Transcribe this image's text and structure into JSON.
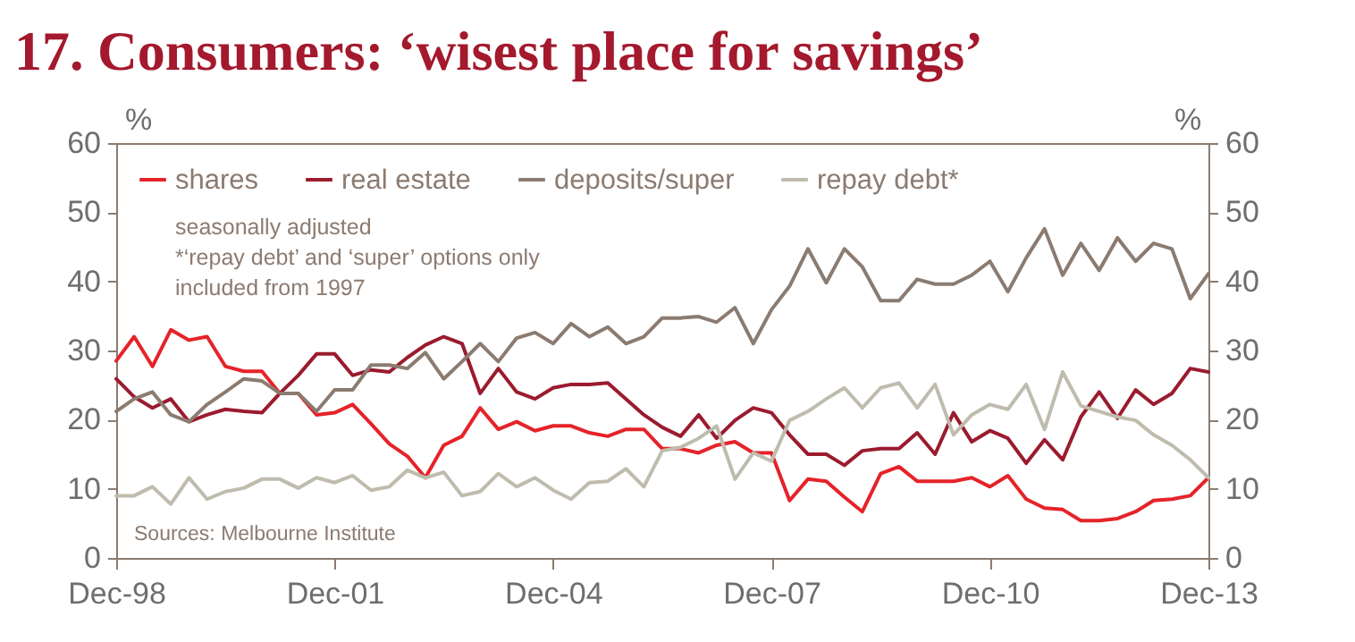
{
  "chart_data": {
    "type": "line",
    "title": "17. Consumers: ‘wisest place for savings’",
    "ylabel": "%",
    "y2label": "%",
    "x": [
      "1998-12",
      "1999-03",
      "1999-06",
      "1999-09",
      "1999-12",
      "2000-03",
      "2000-06",
      "2000-09",
      "2000-12",
      "2001-03",
      "2001-06",
      "2001-09",
      "2001-12",
      "2002-03",
      "2002-06",
      "2002-09",
      "2002-12",
      "2003-03",
      "2003-06",
      "2003-09",
      "2003-12",
      "2004-03",
      "2004-06",
      "2004-09",
      "2004-12",
      "2005-03",
      "2005-06",
      "2005-09",
      "2005-12",
      "2006-03",
      "2006-06",
      "2006-09",
      "2006-12",
      "2007-03",
      "2007-06",
      "2007-09",
      "2007-12",
      "2008-03",
      "2008-06",
      "2008-09",
      "2008-12",
      "2009-03",
      "2009-06",
      "2009-09",
      "2009-12",
      "2010-03",
      "2010-06",
      "2010-09",
      "2010-12",
      "2011-03",
      "2011-06",
      "2011-09",
      "2011-12",
      "2012-03",
      "2012-06",
      "2012-09",
      "2012-12",
      "2013-03",
      "2013-06",
      "2013-09",
      "2013-12"
    ],
    "series": [
      {
        "name": "shares",
        "color": "#e52329",
        "values": [
          28.5,
          32,
          27.7,
          33,
          31.5,
          32,
          27.7,
          27,
          27,
          23.8,
          23.8,
          20.7,
          21,
          22.2,
          19.4,
          16.5,
          14.7,
          11.6,
          16.3,
          17.6,
          21.7,
          18.6,
          19.7,
          18.4,
          19.1,
          19.1,
          18.1,
          17.6,
          18.6,
          18.6,
          15.8,
          15.8,
          15.2,
          16.3,
          16.8,
          15.2,
          15.2,
          8.3,
          11.4,
          11.1,
          8.8,
          6.7,
          12.2,
          13.2,
          11.1,
          11.1,
          11.1,
          11.6,
          10.3,
          11.9,
          8.5,
          7.2,
          7,
          5.4,
          5.4,
          5.7,
          6.7,
          8.3,
          8.5,
          9,
          11.6
        ]
      },
      {
        "name": "real estate",
        "color": "#9b1b2e",
        "values": [
          25.9,
          23.3,
          21.7,
          23,
          19.7,
          20.7,
          21.5,
          21.2,
          21,
          23.8,
          26.4,
          29.5,
          29.5,
          26.4,
          27.2,
          26.9,
          29,
          30.8,
          32,
          31,
          23.8,
          27.4,
          24,
          23,
          24.6,
          25.1,
          25.1,
          25.3,
          23,
          20.7,
          18.9,
          17.6,
          20.7,
          17.3,
          19.9,
          21.7,
          21,
          17.8,
          15,
          15,
          13.4,
          15.5,
          15.8,
          15.8,
          18.1,
          15,
          21,
          16.8,
          18.4,
          17.3,
          13.7,
          17.1,
          14.2,
          20.4,
          24,
          20.2,
          24.3,
          22.2,
          23.8,
          27.4,
          26.9
        ]
      },
      {
        "name": "deposits/super",
        "color": "#8b7b70",
        "values": [
          21.2,
          23,
          24,
          20.7,
          19.7,
          22.2,
          24,
          25.9,
          25.6,
          23.8,
          23.8,
          21.2,
          24.3,
          24.3,
          27.9,
          27.9,
          27.4,
          29.7,
          25.9,
          28.4,
          31,
          28.4,
          31.8,
          32.6,
          31,
          33.9,
          32,
          33.4,
          31,
          32,
          34.7,
          34.7,
          34.9,
          34.1,
          36.2,
          31,
          35.9,
          39.3,
          44.7,
          39.8,
          44.7,
          42.1,
          37.2,
          37.2,
          40.3,
          39.6,
          39.6,
          40.9,
          42.9,
          38.5,
          43.4,
          47.6,
          40.9,
          45.5,
          41.6,
          46.3,
          42.9,
          45.5,
          44.7,
          37.5,
          41.1
        ]
      },
      {
        "name": "repay debt*",
        "color": "#bfbcae",
        "values": [
          9,
          9,
          10.3,
          7.8,
          11.6,
          8.5,
          9.6,
          10.1,
          11.4,
          11.4,
          10.1,
          11.6,
          10.9,
          11.9,
          9.8,
          10.3,
          12.7,
          11.6,
          12.4,
          9,
          9.6,
          12.2,
          10.3,
          11.6,
          9.8,
          8.5,
          10.9,
          11.1,
          12.9,
          10.3,
          15.5,
          16,
          17.3,
          19.1,
          11.4,
          15.2,
          14,
          19.9,
          21.2,
          23,
          24.6,
          21.7,
          24.6,
          25.3,
          21.7,
          25.1,
          17.8,
          20.7,
          22.2,
          21.5,
          25.1,
          18.6,
          26.9,
          22,
          21.2,
          20.4,
          19.9,
          17.8,
          16.3,
          14.2,
          11.6
        ]
      }
    ],
    "xlim": [
      "1998-12",
      "2013-12"
    ],
    "xticks": [
      {
        "value": "1998-12",
        "label": "Dec-98"
      },
      {
        "value": "2001-12",
        "label": "Dec-01"
      },
      {
        "value": "2004-12",
        "label": "Dec-04"
      },
      {
        "value": "2007-12",
        "label": "Dec-07"
      },
      {
        "value": "2010-12",
        "label": "Dec-10"
      },
      {
        "value": "2013-12",
        "label": "Dec-13"
      }
    ],
    "ylim": [
      0,
      60
    ],
    "yticks": [
      0,
      10,
      20,
      30,
      40,
      50,
      60
    ],
    "y2lim": [
      0,
      60
    ],
    "y2ticks": [
      0,
      10,
      20,
      30,
      40,
      50,
      60
    ],
    "legend": "top left",
    "marker": "none",
    "line_style": "solid",
    "annotations": [
      "seasonally adjusted",
      "*‘repay debt’ and ‘super’ options only",
      "included from 1997",
      "Sources: Melbourne Institute"
    ]
  }
}
